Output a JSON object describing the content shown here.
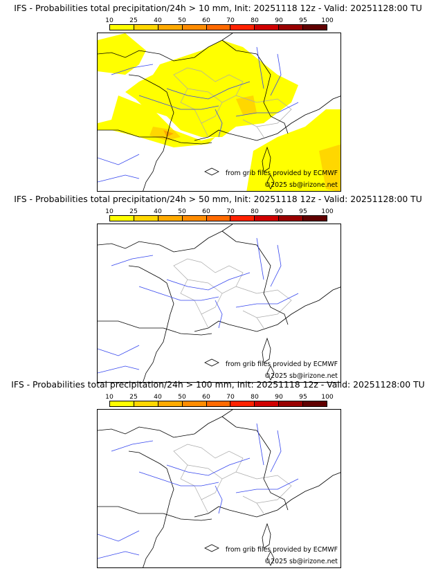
{
  "colorbar": {
    "ticks": [
      "10",
      "25",
      "40",
      "50",
      "60",
      "70",
      "80",
      "90",
      "95",
      "100"
    ],
    "colors": [
      "#ffff00",
      "#ffd700",
      "#ffaa00",
      "#ff8c00",
      "#ff6a00",
      "#ff2200",
      "#d00000",
      "#990000",
      "#600000"
    ]
  },
  "panels": [
    {
      "title": "IFS - Probabilities total precipitation/24h > 10 mm, Init: 20251118 12z - Valid: 20251128:00 TU",
      "has_precip": true
    },
    {
      "title": "IFS - Probabilities total precipitation/24h > 50 mm, Init: 20251118 12z - Valid: 20251128:00 TU",
      "has_precip": false
    },
    {
      "title": "IFS - Probabilities total precipitation/24h > 100 mm, Init: 20251118 12z - Valid: 20251128:00 TU",
      "has_precip": false
    }
  ],
  "credits": {
    "source": "from grib files provided by ECMWF",
    "copyright": "©2025 sb@irizone.net"
  }
}
